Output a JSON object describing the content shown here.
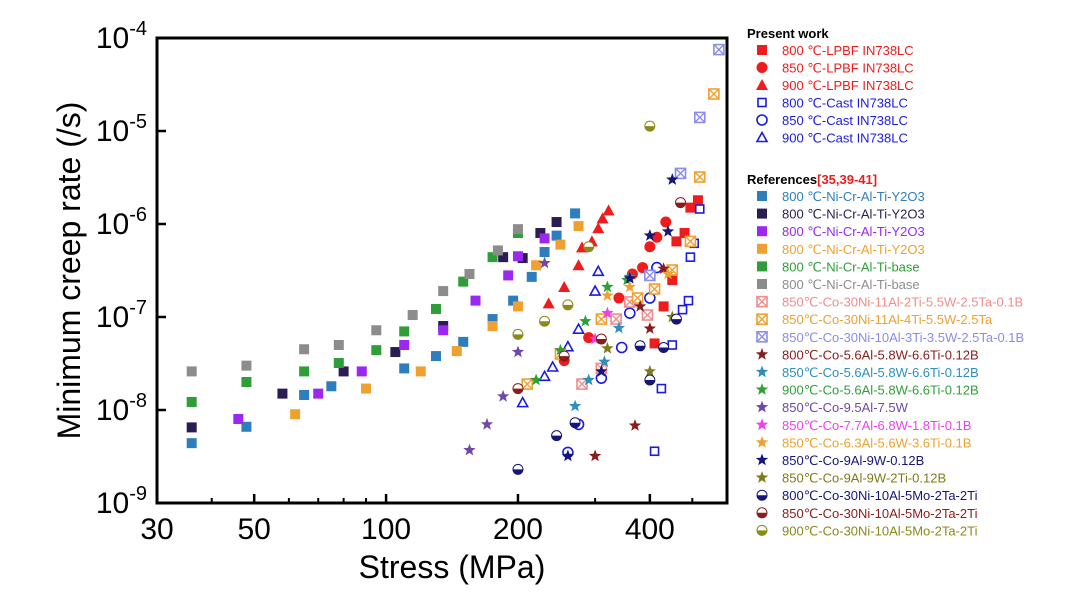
{
  "chart_data": {
    "type": "scatter",
    "xlabel": "Stress (MPa)",
    "ylabel": "Minimum creep rate (/s)",
    "x_scale": "log",
    "y_scale": "log",
    "xlim": [
      30,
      600
    ],
    "ylim": [
      1e-09,
      0.0001
    ],
    "x_ticks": [
      30,
      50,
      100,
      200,
      400
    ],
    "x_tick_labels": [
      "30",
      "50",
      "100",
      "200",
      "400"
    ],
    "y_ticks": [
      1e-09,
      1e-08,
      1e-07,
      1e-06,
      1e-05,
      0.0001
    ],
    "y_tick_labels": [
      {
        "base": "10",
        "exp": "-9"
      },
      {
        "base": "10",
        "exp": "-8"
      },
      {
        "base": "10",
        "exp": "-7"
      },
      {
        "base": "10",
        "exp": "-6"
      },
      {
        "base": "10",
        "exp": "-5"
      },
      {
        "base": "10",
        "exp": "-4"
      }
    ],
    "grid": false,
    "legend_position": "right",
    "legend_groups": [
      {
        "title": "Present work",
        "title_suffix": ""
      },
      {
        "title": "References",
        "title_suffix": "[35,39-41]"
      }
    ],
    "series": [
      {
        "name": "800 ℃-LPBF IN738LC",
        "group": 0,
        "marker": "square",
        "color": "#ee1c1c",
        "points": [
          [
            410,
            5.2e-08
          ],
          [
            430,
            1.3e-07
          ],
          [
            450,
            2.5e-07
          ],
          [
            460,
            6.5e-07
          ],
          [
            480,
            8e-07
          ],
          [
            495,
            1.5e-06
          ],
          [
            515,
            1.8e-06
          ]
        ]
      },
      {
        "name": "850 ℃-LPBF IN738LC",
        "group": 0,
        "marker": "circle",
        "color": "#ee1c1c",
        "points": [
          [
            255,
            3.4e-08
          ],
          [
            290,
            6e-08
          ],
          [
            340,
            1.6e-07
          ],
          [
            365,
            2.9e-07
          ],
          [
            385,
            3.4e-07
          ],
          [
            400,
            5.7e-07
          ],
          [
            415,
            7.2e-07
          ],
          [
            435,
            1.05e-06
          ]
        ]
      },
      {
        "name": "900 ℃-LPBF IN738LC",
        "group": 0,
        "marker": "triangle",
        "color": "#ee1c1c",
        "points": [
          [
            235,
            1.4e-07
          ],
          [
            255,
            2.1e-07
          ],
          [
            275,
            3.6e-07
          ],
          [
            280,
            5.6e-07
          ],
          [
            295,
            6.5e-07
          ],
          [
            305,
            9e-07
          ],
          [
            312,
            1.15e-06
          ],
          [
            322,
            1.4e-06
          ]
        ]
      },
      {
        "name": "800 ℃-Cast IN738LC",
        "group": 0,
        "marker": "square-open",
        "color": "#1a1ae6",
        "points": [
          [
            410,
            3.6e-09
          ],
          [
            425,
            1.7e-08
          ],
          [
            450,
            5e-08
          ],
          [
            475,
            1.2e-07
          ],
          [
            490,
            1.5e-07
          ],
          [
            495,
            4.4e-07
          ],
          [
            505,
            6.2e-07
          ],
          [
            520,
            1.45e-06
          ]
        ]
      },
      {
        "name": "850 ℃-Cast IN738LC",
        "group": 0,
        "marker": "circle-open",
        "color": "#1a1ae6",
        "points": [
          [
            260,
            3.5e-09
          ],
          [
            275,
            7e-09
          ],
          [
            310,
            2.2e-08
          ],
          [
            345,
            4.7e-08
          ],
          [
            360,
            1.1e-07
          ],
          [
            400,
            1.6e-07
          ],
          [
            415,
            3.4e-07
          ]
        ]
      },
      {
        "name": "900 ℃-Cast IN738LC",
        "group": 0,
        "marker": "triangle-open",
        "color": "#1a1ae6",
        "points": [
          [
            205,
            1.2e-08
          ],
          [
            230,
            2.3e-08
          ],
          [
            240,
            2.9e-08
          ],
          [
            260,
            4.8e-08
          ],
          [
            275,
            7.4e-08
          ],
          [
            300,
            1.9e-07
          ],
          [
            305,
            3.1e-07
          ]
        ]
      },
      {
        "name": "800 ℃-Ni-Cr-Al-Ti-Y2O3",
        "group": 1,
        "marker": "square",
        "color": "#2e7ebd",
        "points": [
          [
            36,
            4.4e-09
          ],
          [
            48,
            6.6e-09
          ],
          [
            65,
            1.45e-08
          ],
          [
            75,
            1.8e-08
          ],
          [
            110,
            2.8e-08
          ],
          [
            130,
            3.8e-08
          ],
          [
            150,
            5.4e-08
          ],
          [
            175,
            9.5e-08
          ],
          [
            195,
            1.5e-07
          ],
          [
            215,
            2.7e-07
          ],
          [
            230,
            5e-07
          ],
          [
            245,
            7.5e-07
          ],
          [
            270,
            1.3e-06
          ]
        ]
      },
      {
        "name": "800 ℃-Ni-Cr-Al-Ti-Y2O3 ",
        "group": 1,
        "marker": "square",
        "color": "#2b1d52",
        "points": [
          [
            36,
            6.5e-09
          ],
          [
            58,
            1.5e-08
          ],
          [
            80,
            2.6e-08
          ],
          [
            105,
            4.2e-08
          ],
          [
            135,
            8e-08
          ],
          [
            185,
            4.4e-07
          ],
          [
            205,
            4.3e-07
          ],
          [
            225,
            8e-07
          ],
          [
            245,
            1.05e-06
          ]
        ]
      },
      {
        "name": "800 ℃-Ni-Cr-Al-Ti-Y2O3  ",
        "group": 1,
        "marker": "square",
        "color": "#9b28f0",
        "points": [
          [
            46,
            8e-09
          ],
          [
            70,
            1.5e-08
          ],
          [
            88,
            2.6e-08
          ],
          [
            110,
            5e-08
          ],
          [
            135,
            7.2e-08
          ],
          [
            160,
            1.5e-07
          ],
          [
            190,
            2.8e-07
          ],
          [
            200,
            4.5e-07
          ],
          [
            230,
            7e-07
          ]
        ]
      },
      {
        "name": "800 ℃-Ni-Cr-Al-Ti-Y2O3   ",
        "group": 1,
        "marker": "square",
        "color": "#f0a02e",
        "points": [
          [
            62,
            9e-09
          ],
          [
            90,
            1.7e-08
          ],
          [
            120,
            2.6e-08
          ],
          [
            145,
            4.3e-08
          ],
          [
            175,
            8e-08
          ],
          [
            200,
            1.3e-07
          ],
          [
            220,
            3.6e-07
          ],
          [
            250,
            6e-07
          ],
          [
            275,
            9.5e-07
          ]
        ]
      },
      {
        "name": "800 ℃-Ni-Cr-Al-Ti-base",
        "group": 1,
        "marker": "square",
        "color": "#2f9e38",
        "points": [
          [
            36,
            1.22e-08
          ],
          [
            48,
            2e-08
          ],
          [
            65,
            2.6e-08
          ],
          [
            78,
            3.2e-08
          ],
          [
            95,
            4.4e-08
          ],
          [
            110,
            7e-08
          ],
          [
            130,
            1.22e-07
          ],
          [
            150,
            2.4e-07
          ],
          [
            175,
            4.4e-07
          ],
          [
            200,
            8e-07
          ]
        ]
      },
      {
        "name": "800 ℃-Ni-Cr-Al-Ti-base ",
        "group": 1,
        "marker": "square",
        "color": "#8c8c8c",
        "points": [
          [
            36,
            2.6e-08
          ],
          [
            48,
            3e-08
          ],
          [
            65,
            4.5e-08
          ],
          [
            78,
            5e-08
          ],
          [
            95,
            7.2e-08
          ],
          [
            115,
            1.05e-07
          ],
          [
            135,
            1.9e-07
          ],
          [
            155,
            2.9e-07
          ],
          [
            180,
            5.2e-07
          ],
          [
            200,
            8.8e-07
          ]
        ]
      },
      {
        "name": "850℃-Co-30Ni-11Al-2Ti-5.5W-2.5Ta-0.1B",
        "group": 1,
        "marker": "xsquare",
        "color": "#f08c8c",
        "points": [
          [
            280,
            1.9e-08
          ],
          [
            310,
            2.8e-08
          ],
          [
            335,
            9.5e-08
          ],
          [
            360,
            1.45e-07
          ],
          [
            395,
            1.05e-07
          ]
        ]
      },
      {
        "name": "850℃-Co-30Ni-11Al-4Ti-5.5W-2.5Ta",
        "group": 1,
        "marker": "xsquare",
        "color": "#f0a02e",
        "points": [
          [
            210,
            1.9e-08
          ],
          [
            250,
            4e-08
          ],
          [
            310,
            9.5e-08
          ],
          [
            375,
            1.6e-07
          ],
          [
            410,
            2e-07
          ],
          [
            450,
            3.2e-07
          ],
          [
            495,
            6.5e-07
          ],
          [
            520,
            3.2e-06
          ],
          [
            560,
            2.5e-05
          ]
        ]
      },
      {
        "name": "850℃-Co-30Ni-10Al-3Ti-3.5W-2.5Ta-0.1B",
        "group": 1,
        "marker": "xsquare",
        "color": "#8c8cea",
        "points": [
          [
            400,
            2.8e-07
          ],
          [
            470,
            3.5e-06
          ],
          [
            520,
            1.4e-05
          ],
          [
            575,
            7.5e-05
          ]
        ]
      },
      {
        "name": "800℃-Co-5.6Al-5.8W-6.6Ti-0.12B",
        "group": 1,
        "marker": "star",
        "color": "#8a1c1c",
        "points": [
          [
            300,
            3.2e-09
          ],
          [
            370,
            6.8e-09
          ],
          [
            380,
            1.3e-07
          ],
          [
            400,
            7.5e-08
          ],
          [
            430,
            3.3e-07
          ]
        ]
      },
      {
        "name": "850℃-Co-5.6Al-5.8W-6.6Ti-0.12B",
        "group": 1,
        "marker": "star",
        "color": "#2e8fbd",
        "points": [
          [
            270,
            1.1e-08
          ],
          [
            290,
            2.1e-08
          ],
          [
            315,
            3.3e-08
          ],
          [
            340,
            7.6e-08
          ],
          [
            360,
            2.7e-07
          ]
        ]
      },
      {
        "name": "900℃-Co-5.6Al-5.8W-6.6Ti-0.12B",
        "group": 1,
        "marker": "star",
        "color": "#2fa038",
        "points": [
          [
            220,
            2.1e-08
          ],
          [
            250,
            4.4e-08
          ],
          [
            285,
            9e-08
          ],
          [
            320,
            2.1e-07
          ],
          [
            355,
            2.5e-07
          ]
        ]
      },
      {
        "name": "850℃-Co-9.5Al-7.5W",
        "group": 1,
        "marker": "star",
        "color": "#7048a8",
        "points": [
          [
            155,
            3.7e-09
          ],
          [
            170,
            7e-09
          ],
          [
            185,
            1.4e-08
          ],
          [
            200,
            4.2e-08
          ],
          [
            230,
            3.8e-07
          ]
        ]
      },
      {
        "name": "850℃-Co-7.7Al-6.8W-1.8Ti-0.1B",
        "group": 1,
        "marker": "star",
        "color": "#ee40ee",
        "points": [
          [
            300,
            5.8e-08
          ],
          [
            320,
            1.1e-07
          ]
        ]
      },
      {
        "name": "850℃-Co-6.3Al-5.6W-3.6Ti-0.1B",
        "group": 1,
        "marker": "star",
        "color": "#f0a02e",
        "points": [
          [
            320,
            1.7e-07
          ],
          [
            360,
            2.1e-07
          ],
          [
            440,
            2.9e-07
          ]
        ]
      },
      {
        "name": "850℃-Co-9Al-9W-0.12B",
        "group": 1,
        "marker": "star",
        "color": "#15157a",
        "points": [
          [
            260,
            3.2e-09
          ],
          [
            310,
            2.6e-08
          ],
          [
            360,
            2.6e-07
          ],
          [
            400,
            7.5e-07
          ],
          [
            440,
            8.3e-07
          ],
          [
            450,
            3e-06
          ]
        ]
      },
      {
        "name": "850℃-Co-9Al-9W-2Ti-0.12B",
        "group": 1,
        "marker": "star",
        "color": "#807a1a",
        "points": [
          [
            320,
            4.6e-08
          ],
          [
            400,
            2.6e-08
          ],
          [
            450,
            1e-07
          ]
        ]
      },
      {
        "name": "800℃-Co-30Ni-10Al-5Mo-2Ta-2Ti",
        "group": 1,
        "marker": "halfcircle",
        "color": "#15157a",
        "points": [
          [
            200,
            2.3e-09
          ],
          [
            245,
            5.3e-09
          ],
          [
            270,
            7.3e-09
          ],
          [
            380,
            4.9e-08
          ],
          [
            400,
            2.1e-08
          ],
          [
            430,
            4.7e-08
          ],
          [
            460,
            9.5e-08
          ]
        ]
      },
      {
        "name": "850℃-Co-30Ni-10Al-5Mo-2Ta-2Ti",
        "group": 1,
        "marker": "halfcircle",
        "color": "#8a1c1c",
        "points": [
          [
            200,
            1.7e-08
          ],
          [
            255,
            3.8e-08
          ],
          [
            310,
            5.8e-08
          ],
          [
            470,
            1.7e-06
          ]
        ]
      },
      {
        "name": "900℃-Co-30Ni-10Al-5Mo-2Ta-2Ti",
        "group": 1,
        "marker": "halfcircle",
        "color": "#8a8a1a",
        "points": [
          [
            200,
            6.5e-08
          ],
          [
            230,
            9e-08
          ],
          [
            260,
            1.35e-07
          ],
          [
            290,
            5.7e-07
          ],
          [
            400,
            1.13e-05
          ]
        ]
      }
    ]
  }
}
